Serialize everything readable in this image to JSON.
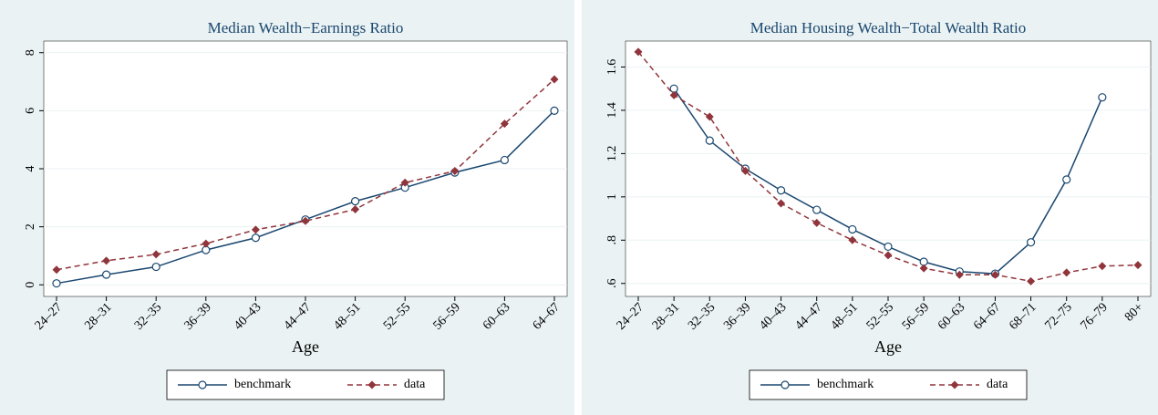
{
  "chart_data": [
    {
      "type": "line",
      "title": "Median Wealth−Earnings Ratio",
      "x_label": "Age",
      "categories": [
        "24–27",
        "28–31",
        "32–35",
        "36–39",
        "40–43",
        "44–47",
        "48–51",
        "52–55",
        "56–59",
        "60–63",
        "64–67"
      ],
      "series": [
        {
          "name": "benchmark",
          "color": "#1a476f",
          "marker": "circle",
          "dashed": false,
          "values": [
            0.05,
            0.35,
            0.62,
            1.2,
            1.62,
            2.25,
            2.88,
            3.35,
            3.87,
            4.3,
            6.0
          ]
        },
        {
          "name": "data",
          "color": "#90353b",
          "marker": "diamond",
          "dashed": true,
          "values": [
            0.52,
            0.83,
            1.05,
            1.42,
            1.9,
            2.2,
            2.6,
            3.52,
            3.92,
            5.55,
            7.08
          ]
        }
      ],
      "ylim": [
        -0.4,
        8.4
      ],
      "yticks": [
        0,
        2,
        4,
        6,
        8
      ],
      "grid": true,
      "legend": "bottom"
    },
    {
      "type": "line",
      "title": "Median Housing Wealth−Total Wealth Ratio",
      "x_label": "Age",
      "categories": [
        "24–27",
        "28–31",
        "32–35",
        "36–39",
        "40–43",
        "44–47",
        "48–51",
        "52–55",
        "56–59",
        "60–63",
        "64–67",
        "68–71",
        "72–75",
        "76–79",
        "80+"
      ],
      "series": [
        {
          "name": "benchmark",
          "color": "#1a476f",
          "marker": "circle",
          "dashed": false,
          "values": [
            null,
            1.5,
            1.26,
            1.13,
            1.03,
            0.94,
            0.85,
            0.77,
            0.7,
            0.655,
            0.645,
            0.79,
            1.08,
            1.46,
            null
          ]
        },
        {
          "name": "data",
          "color": "#90353b",
          "marker": "diamond",
          "dashed": true,
          "values": [
            1.67,
            1.47,
            1.37,
            1.12,
            0.97,
            0.88,
            0.8,
            0.73,
            0.67,
            0.64,
            0.64,
            0.61,
            0.65,
            0.68,
            0.685
          ]
        }
      ],
      "ylim": [
        0.54,
        1.72
      ],
      "yticks": [
        {
          "value": 0.6,
          "label": ".6"
        },
        {
          "value": 0.8,
          "label": ".8"
        },
        1,
        1.2,
        1.4,
        1.6
      ],
      "grid": true,
      "legend": "bottom"
    }
  ]
}
